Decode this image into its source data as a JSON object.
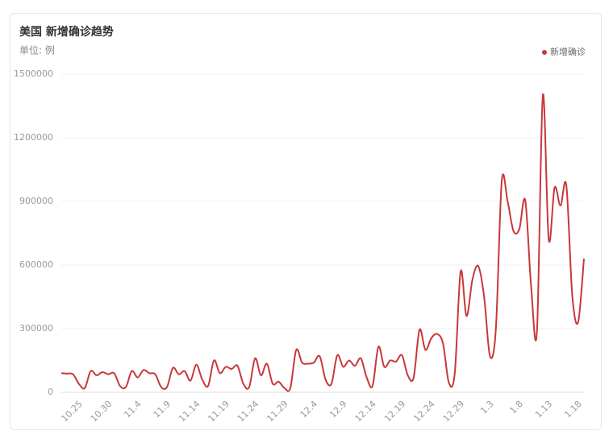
{
  "chart_data": {
    "type": "line",
    "title": "美国 新增确诊趋势",
    "subtitle": "单位: 例",
    "categories": [
      null,
      null,
      null,
      "10.25",
      null,
      null,
      null,
      null,
      "10.30",
      null,
      null,
      null,
      null,
      "11.4",
      null,
      null,
      null,
      null,
      "11.9",
      null,
      null,
      null,
      null,
      "11.14",
      null,
      null,
      null,
      null,
      "11.19",
      null,
      null,
      null,
      null,
      "11.24",
      null,
      null,
      null,
      null,
      "11.29",
      null,
      null,
      null,
      null,
      "12.4",
      null,
      null,
      null,
      null,
      "12.9",
      null,
      null,
      null,
      null,
      "12.14",
      null,
      null,
      null,
      null,
      "12.19",
      null,
      null,
      null,
      null,
      "12.24",
      null,
      null,
      null,
      null,
      "12.29",
      null,
      null,
      null,
      null,
      "1.3",
      null,
      null,
      null,
      null,
      "1.8",
      null,
      null,
      null,
      null,
      "1.13",
      null,
      null,
      null,
      null,
      "1.18",
      null
    ],
    "series": [
      {
        "name": "新增确诊",
        "color": "#c8373a",
        "values": [
          90000,
          88000,
          85000,
          40000,
          20000,
          100000,
          80000,
          95000,
          85000,
          90000,
          30000,
          25000,
          100000,
          70000,
          105000,
          90000,
          85000,
          25000,
          25000,
          115000,
          85000,
          100000,
          55000,
          130000,
          60000,
          30000,
          150000,
          90000,
          120000,
          110000,
          125000,
          40000,
          25000,
          160000,
          80000,
          135000,
          40000,
          50000,
          20000,
          20000,
          200000,
          140000,
          135000,
          140000,
          170000,
          60000,
          40000,
          175000,
          120000,
          150000,
          125000,
          160000,
          70000,
          30000,
          215000,
          120000,
          150000,
          145000,
          175000,
          80000,
          70000,
          295000,
          200000,
          255000,
          275000,
          230000,
          45000,
          90000,
          570000,
          360000,
          530000,
          595000,
          450000,
          170000,
          300000,
          995000,
          900000,
          760000,
          770000,
          905000,
          500000,
          290000,
          1400000,
          720000,
          965000,
          880000,
          975000,
          460000,
          330000,
          630000
        ]
      }
    ],
    "ylim": [
      0,
      1500000
    ],
    "yticks": [
      0,
      300000,
      600000,
      900000,
      1200000,
      1500000
    ],
    "grid": true,
    "legend": "top-right"
  }
}
